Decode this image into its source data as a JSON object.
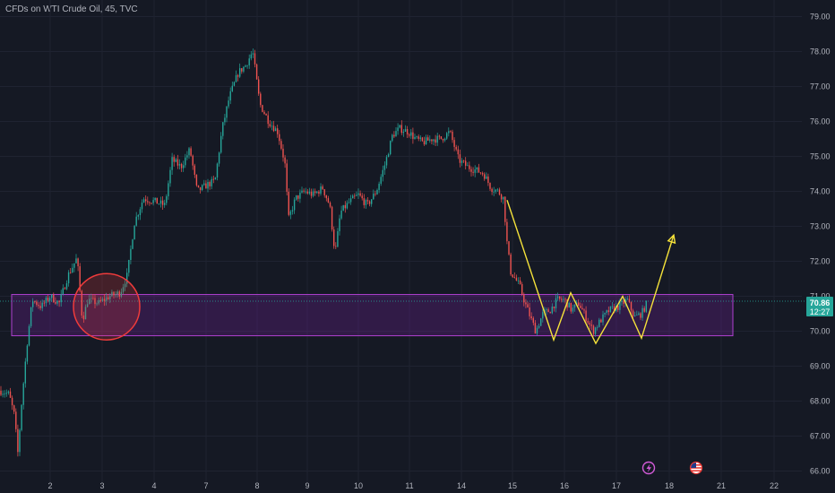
{
  "header": {
    "title": "CFDs on WTI Crude Oil, 45, TVC"
  },
  "price_label": {
    "price": "70.86",
    "countdown": "12:27"
  },
  "colors": {
    "background": "#151924",
    "grid": "#1f2331",
    "up": "#26a69a",
    "down": "#ef5350",
    "zone_fill": "#7b1fa2",
    "zone_stroke": "#b040d0",
    "circle": "#ef3b3b",
    "projection": "#f5e23a",
    "axis_text": "#b2b5be"
  },
  "chart_data": {
    "type": "candlestick",
    "title": "CFDs on WTI Crude Oil, 45, TVC",
    "y_axis": {
      "position": "right",
      "ticks": [
        "66.00",
        "67.00",
        "68.00",
        "69.00",
        "70.00",
        "71.00",
        "72.00",
        "73.00",
        "74.00",
        "75.00",
        "76.00",
        "77.00",
        "78.00",
        "79.00"
      ],
      "range": [
        65.8,
        79.3
      ]
    },
    "x_axis": {
      "ticks": [
        "2",
        "3",
        "4",
        "7",
        "8",
        "9",
        "10",
        "11",
        "14",
        "15",
        "16",
        "17",
        "18",
        "21",
        "22"
      ]
    },
    "last_price": 70.86,
    "price_path": [
      [
        0,
        68.3
      ],
      [
        10,
        68.2
      ],
      [
        16,
        67.6
      ],
      [
        20,
        66.5
      ],
      [
        24,
        67.9
      ],
      [
        30,
        69.6
      ],
      [
        36,
        70.9
      ],
      [
        46,
        70.7
      ],
      [
        56,
        71.0
      ],
      [
        66,
        70.8
      ],
      [
        76,
        71.6
      ],
      [
        86,
        72.1
      ],
      [
        92,
        70.3
      ],
      [
        98,
        70.9
      ],
      [
        110,
        70.8
      ],
      [
        122,
        71.0
      ],
      [
        134,
        71.1
      ],
      [
        142,
        71.6
      ],
      [
        150,
        73.1
      ],
      [
        160,
        73.8
      ],
      [
        174,
        73.7
      ],
      [
        184,
        73.6
      ],
      [
        192,
        74.9
      ],
      [
        202,
        74.7
      ],
      [
        212,
        75.2
      ],
      [
        220,
        74.0
      ],
      [
        232,
        74.2
      ],
      [
        240,
        74.3
      ],
      [
        248,
        75.8
      ],
      [
        256,
        76.7
      ],
      [
        266,
        77.4
      ],
      [
        274,
        77.6
      ],
      [
        282,
        78.0
      ],
      [
        290,
        76.5
      ],
      [
        300,
        76.0
      ],
      [
        310,
        75.7
      ],
      [
        318,
        74.8
      ],
      [
        322,
        73.2
      ],
      [
        330,
        73.8
      ],
      [
        340,
        74.0
      ],
      [
        350,
        73.9
      ],
      [
        360,
        74.1
      ],
      [
        368,
        73.6
      ],
      [
        374,
        72.2
      ],
      [
        380,
        73.4
      ],
      [
        390,
        73.7
      ],
      [
        400,
        73.9
      ],
      [
        410,
        73.6
      ],
      [
        420,
        74.0
      ],
      [
        430,
        74.8
      ],
      [
        438,
        75.6
      ],
      [
        446,
        75.8
      ],
      [
        456,
        75.7
      ],
      [
        464,
        75.5
      ],
      [
        472,
        75.4
      ],
      [
        482,
        75.5
      ],
      [
        492,
        75.5
      ],
      [
        502,
        75.7
      ],
      [
        512,
        74.9
      ],
      [
        522,
        74.7
      ],
      [
        532,
        74.6
      ],
      [
        540,
        74.5
      ],
      [
        548,
        74.1
      ],
      [
        556,
        74.0
      ],
      [
        562,
        73.8
      ],
      [
        566,
        72.5
      ],
      [
        570,
        71.7
      ],
      [
        580,
        71.3
      ],
      [
        586,
        70.8
      ],
      [
        592,
        70.4
      ],
      [
        598,
        70.0
      ],
      [
        606,
        70.5
      ],
      [
        614,
        70.6
      ],
      [
        622,
        70.9
      ],
      [
        630,
        70.9
      ],
      [
        638,
        70.6
      ],
      [
        646,
        70.8
      ],
      [
        654,
        70.4
      ],
      [
        662,
        70.0
      ],
      [
        670,
        70.3
      ],
      [
        680,
        70.6
      ],
      [
        690,
        70.7
      ],
      [
        700,
        70.9
      ],
      [
        708,
        70.4
      ],
      [
        716,
        70.5
      ],
      [
        722,
        70.8
      ]
    ],
    "annotations": [
      {
        "type": "zone",
        "y_top": 71.05,
        "y_bottom": 69.87
      },
      {
        "type": "circle",
        "center_y": 70.7
      },
      {
        "type": "projection",
        "points_y": [
          73.75,
          69.75,
          71.1,
          69.65,
          71.0,
          69.8,
          72.75
        ]
      }
    ]
  }
}
